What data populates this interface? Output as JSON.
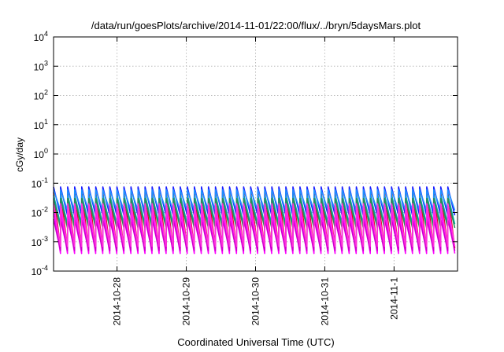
{
  "chart_data": {
    "type": "line",
    "title": "/data/run/goesPlots/archive/2014-11-01/22:00/flux/../bryn/5daysMars.plot",
    "xlabel": "Coordinated Universal Time (UTC)",
    "ylabel": "cGy/day",
    "yscale": "log",
    "ylim": [
      0.0001,
      10000
    ],
    "xlim": [
      "2014-10-27T02:00",
      "2014-11-01T22:00"
    ],
    "x_ticks": [
      "2014-10-28",
      "2014-10-29",
      "2014-10-30",
      "2014-10-31",
      "2014-11-1"
    ],
    "y_ticks": [
      {
        "base": "10",
        "exp": "-4"
      },
      {
        "base": "10",
        "exp": "-3"
      },
      {
        "base": "10",
        "exp": "-2"
      },
      {
        "base": "10",
        "exp": "-1"
      },
      {
        "base": "10",
        "exp": "0"
      },
      {
        "base": "10",
        "exp": "1"
      },
      {
        "base": "10",
        "exp": "2"
      },
      {
        "base": "10",
        "exp": "3"
      },
      {
        "base": "10",
        "exp": "4"
      }
    ],
    "grid": true,
    "legend": "none",
    "pattern": {
      "start": "2014-10-27T02:00",
      "period_hours": 2.44,
      "cycles": 57,
      "note": "sawtooth: each series jumps to its peak then decays over one period"
    },
    "series": [
      {
        "color": "#e0001a",
        "peak": 0.05,
        "trough": 0.0006
      },
      {
        "color": "#1a1aff",
        "peak": 0.075,
        "trough": 0.008
      },
      {
        "color": "#00aaaa",
        "peak": 0.04,
        "trough": 0.004
      },
      {
        "color": "#1e90ff",
        "peak": 0.06,
        "trough": 0.012
      },
      {
        "color": "#2e8b57",
        "peak": 0.03,
        "trough": 0.003
      },
      {
        "color": "#ff00ff",
        "peak": 0.012,
        "trough": 0.0004
      },
      {
        "color": "#cc00cc",
        "peak": 0.006,
        "trough": 0.0005
      },
      {
        "color": "#ff33dd",
        "peak": 0.02,
        "trough": 0.0007
      }
    ]
  }
}
